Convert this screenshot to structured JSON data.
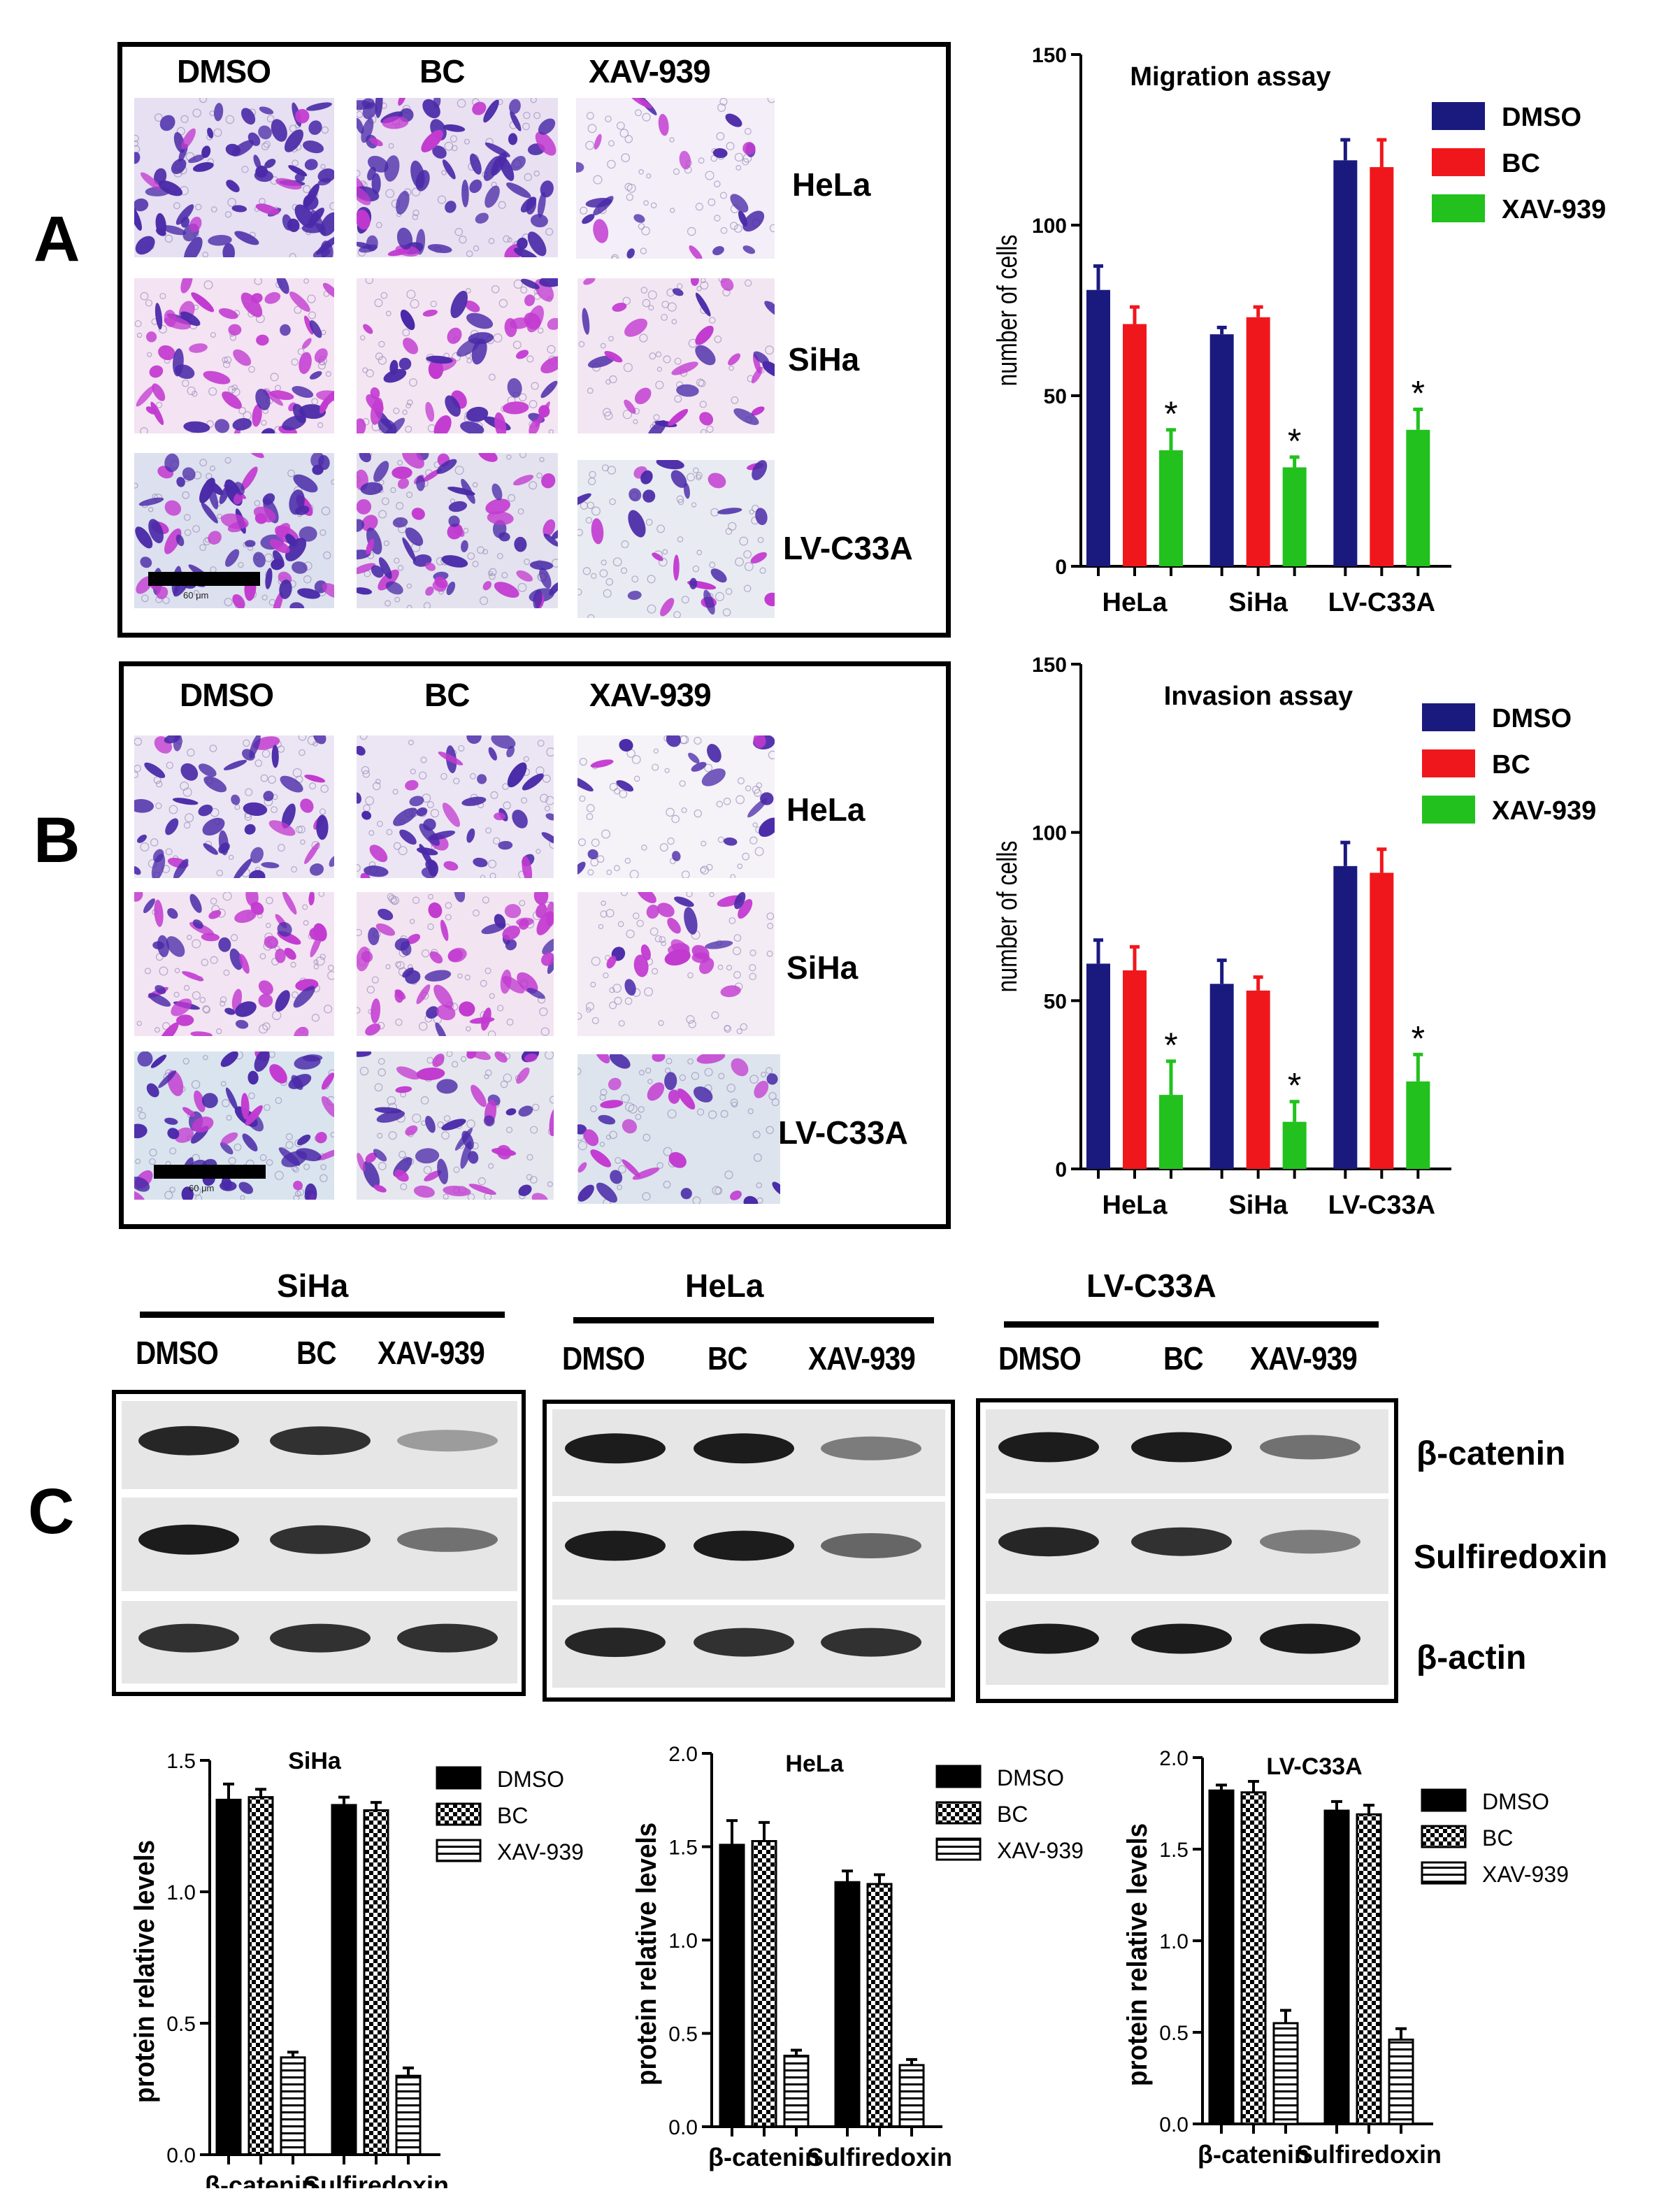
{
  "panels": {
    "A": {
      "label": "A",
      "headers": [
        "DMSO",
        "BC",
        "XAV-939"
      ],
      "rows": [
        "HeLa",
        "SiHa",
        "LV-C33A"
      ],
      "scale_bar": "60 μm"
    },
    "B": {
      "label": "B",
      "headers": [
        "DMSO",
        "BC",
        "XAV-939"
      ],
      "rows": [
        "HeLa",
        "SiHa",
        "LV-C33A"
      ],
      "scale_bar": "60 μm"
    },
    "C": {
      "label": "C",
      "blots": [
        {
          "cell_line": "SiHa",
          "lanes": [
            "DMSO",
            "BC",
            "XAV-939"
          ]
        },
        {
          "cell_line": "HeLa",
          "lanes": [
            "DMSO",
            "BC",
            "XAV-939"
          ]
        },
        {
          "cell_line": "LV-C33A",
          "lanes": [
            "DMSO",
            "BC",
            "XAV-939"
          ]
        }
      ],
      "proteins": [
        "β-catenin",
        "Sulfiredoxin",
        "β-actin"
      ]
    }
  },
  "colors": {
    "dmso": "#1a1a7e",
    "bc": "#f0171c",
    "xav": "#22c11e",
    "stain_dark": "#4a2aa8",
    "stain_pink": "#c23ad0"
  },
  "chart_data": [
    {
      "id": "migration",
      "type": "bar",
      "title": "Migration assay",
      "xlabel": "",
      "ylabel": "number of cells",
      "ylim": [
        0,
        150
      ],
      "yticks": [
        0,
        50,
        100,
        150
      ],
      "categories": [
        "HeLa",
        "SiHa",
        "LV-C33A"
      ],
      "legend_position": "top-right",
      "series": [
        {
          "name": "DMSO",
          "values": [
            81,
            68,
            119
          ],
          "errors": [
            7,
            2,
            6
          ]
        },
        {
          "name": "BC",
          "values": [
            71,
            73,
            117
          ],
          "errors": [
            5,
            3,
            8
          ]
        },
        {
          "name": "XAV-939",
          "values": [
            34,
            29,
            40
          ],
          "errors": [
            6,
            3,
            6
          ]
        }
      ],
      "significance": [
        "*",
        "*",
        "*"
      ]
    },
    {
      "id": "invasion",
      "type": "bar",
      "title": "Invasion assay",
      "xlabel": "",
      "ylabel": "number of cells",
      "ylim": [
        0,
        150
      ],
      "yticks": [
        0,
        50,
        100,
        150
      ],
      "categories": [
        "HeLa",
        "SiHa",
        "LV-C33A"
      ],
      "legend_position": "top-right",
      "series": [
        {
          "name": "DMSO",
          "values": [
            61,
            55,
            90
          ],
          "errors": [
            7,
            7,
            7
          ]
        },
        {
          "name": "BC",
          "values": [
            59,
            53,
            88
          ],
          "errors": [
            7,
            4,
            7
          ]
        },
        {
          "name": "XAV-939",
          "values": [
            22,
            14,
            26
          ],
          "errors": [
            10,
            6,
            8
          ]
        }
      ],
      "significance": [
        "*",
        "*",
        "*"
      ]
    },
    {
      "id": "wb-siha",
      "type": "bar",
      "title": "SiHa",
      "xlabel": "",
      "ylabel": "protein relative levels",
      "ylim": [
        0,
        1.5
      ],
      "yticks": [
        "0.0",
        "0.5",
        "1.0",
        "1.5"
      ],
      "categories": [
        "β-catenin",
        "Sulfiredoxin"
      ],
      "legend_position": "top-right",
      "series": [
        {
          "name": "DMSO",
          "values": [
            1.35,
            1.33
          ],
          "errors": [
            0.06,
            0.03
          ]
        },
        {
          "name": "BC",
          "values": [
            1.36,
            1.31
          ],
          "errors": [
            0.03,
            0.03
          ]
        },
        {
          "name": "XAV-939",
          "values": [
            0.37,
            0.3
          ],
          "errors": [
            0.02,
            0.03
          ]
        }
      ]
    },
    {
      "id": "wb-hela",
      "type": "bar",
      "title": "HeLa",
      "xlabel": "",
      "ylabel": "protein relative levels",
      "ylim": [
        0,
        2.0
      ],
      "yticks": [
        "0.0",
        "0.5",
        "1.0",
        "1.5",
        "2.0"
      ],
      "categories": [
        "β-catenin",
        "Sulfiredoxin"
      ],
      "legend_position": "top-right",
      "series": [
        {
          "name": "DMSO",
          "values": [
            1.51,
            1.31
          ],
          "errors": [
            0.13,
            0.06
          ]
        },
        {
          "name": "BC",
          "values": [
            1.53,
            1.3
          ],
          "errors": [
            0.1,
            0.05
          ]
        },
        {
          "name": "XAV-939",
          "values": [
            0.38,
            0.33
          ],
          "errors": [
            0.03,
            0.03
          ]
        }
      ]
    },
    {
      "id": "wb-lvc33a",
      "type": "bar",
      "title": "LV-C33A",
      "xlabel": "",
      "ylabel": "protein relative levels",
      "ylim": [
        0,
        2.0
      ],
      "yticks": [
        "0.0",
        "0.5",
        "1.0",
        "1.5",
        "2.0"
      ],
      "categories": [
        "β-catenin",
        "Sulfiredoxin"
      ],
      "legend_position": "top-right",
      "series": [
        {
          "name": "DMSO",
          "values": [
            1.82,
            1.71
          ],
          "errors": [
            0.03,
            0.05
          ]
        },
        {
          "name": "BC",
          "values": [
            1.81,
            1.69
          ],
          "errors": [
            0.06,
            0.05
          ]
        },
        {
          "name": "XAV-939",
          "values": [
            0.55,
            0.46
          ],
          "errors": [
            0.07,
            0.06
          ]
        }
      ]
    }
  ]
}
